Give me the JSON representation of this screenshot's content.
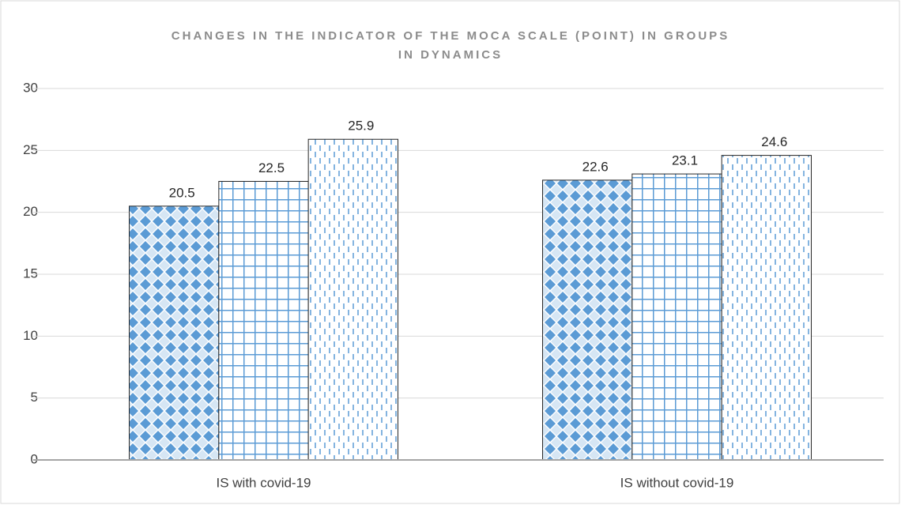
{
  "chart_data": {
    "type": "bar",
    "title": [
      "CHANGES IN THE INDICATOR OF THE MOCA SCALE (POINT) IN GROUPS",
      "IN DYNAMICS"
    ],
    "categories": [
      "IS with covid-19",
      "IS without covid-19"
    ],
    "series": [
      {
        "color": "#5b9bd5",
        "pattern": "diamond",
        "values": [
          20.5,
          22.6
        ]
      },
      {
        "color": "#5b9bd5",
        "pattern": "grid",
        "values": [
          22.5,
          23.1
        ]
      },
      {
        "color": "#5b9bd5",
        "pattern": "dash",
        "values": [
          25.9,
          24.6
        ]
      }
    ],
    "ylim": [
      0,
      30
    ],
    "yticks": [
      0,
      5,
      10,
      15,
      20,
      25,
      30
    ],
    "grid": true,
    "data_labels": true
  }
}
